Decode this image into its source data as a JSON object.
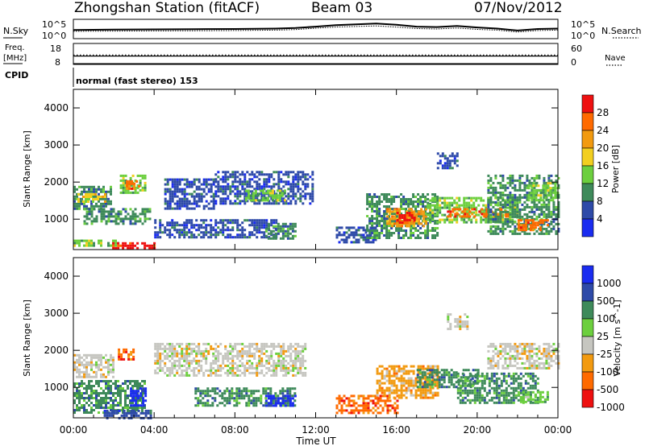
{
  "header": {
    "station": "Zhongshan Station (fitACF)",
    "beam": "Beam 03",
    "date": "07/Nov/2012"
  },
  "top_panels": {
    "nsky_label": "N.Sky",
    "nsky_ticks": [
      "10^5",
      "10^0"
    ],
    "nsearch_label": "N.Search",
    "nsearch_ticks": [
      "10^5",
      "10^0"
    ],
    "freq_label_1": "Freq.",
    "freq_label_2": "[MHz]",
    "freq_ticks": [
      "18",
      "8"
    ],
    "nave_label": "Nave",
    "nave_ticks": [
      "60",
      "0"
    ],
    "cpid_label": "CPID",
    "cpid_text": "normal (fast stereo) 153"
  },
  "colors": {
    "power": [
      "#1a2cf0",
      "#2e4aa8",
      "#3e8a5a",
      "#6ccf3e",
      "#f2cf20",
      "#f29a10",
      "#ff6a00",
      "#ee1010"
    ],
    "velocity": [
      "#1a2cf0",
      "#2e4aa8",
      "#3e8a5a",
      "#6ccf3e",
      "#c6c6c0",
      "#f29a10",
      "#ff6a00",
      "#ee1010"
    ]
  },
  "chart_data": [
    {
      "type": "heatmap",
      "panel": "power",
      "ylabel": "Slant Range [km]",
      "xlabel": "",
      "ylim": [
        180,
        4500
      ],
      "xlim": [
        "00:00",
        "24:00"
      ],
      "y_ticks": [
        "1000",
        "2000",
        "3000",
        "4000"
      ],
      "colorbar_label": "Power [dB]",
      "colorbar_ticks": [
        "4",
        "8",
        "12",
        "16",
        "20",
        "24",
        "28"
      ],
      "regions": [
        {
          "t0": 0.0,
          "t1": 2.2,
          "r0": 300,
          "r1": 450,
          "level": 3
        },
        {
          "t0": 1.8,
          "t1": 4.0,
          "r0": 200,
          "r1": 380,
          "level": 7
        },
        {
          "t0": 0.0,
          "t1": 1.8,
          "r0": 1300,
          "r1": 1900,
          "level": 2
        },
        {
          "t0": 0.2,
          "t1": 1.6,
          "r0": 1500,
          "r1": 1700,
          "level": 4
        },
        {
          "t0": 0.5,
          "t1": 3.8,
          "r0": 900,
          "r1": 1300,
          "level": 2
        },
        {
          "t0": 2.3,
          "t1": 3.6,
          "r0": 1700,
          "r1": 2200,
          "level": 3
        },
        {
          "t0": 2.6,
          "t1": 3.2,
          "r0": 1850,
          "r1": 2050,
          "level": 6
        },
        {
          "t0": 4.5,
          "t1": 7.0,
          "r0": 1300,
          "r1": 2100,
          "level": 1
        },
        {
          "t0": 7.0,
          "t1": 11.8,
          "r0": 1400,
          "r1": 2300,
          "level": 1
        },
        {
          "t0": 8.5,
          "t1": 10.5,
          "r0": 1500,
          "r1": 1800,
          "level": 3
        },
        {
          "t0": 4.0,
          "t1": 10.0,
          "r0": 500,
          "r1": 1000,
          "level": 1
        },
        {
          "t0": 9.5,
          "t1": 11.0,
          "r0": 500,
          "r1": 900,
          "level": 2
        },
        {
          "t0": 13.0,
          "t1": 15.0,
          "r0": 400,
          "r1": 800,
          "level": 1
        },
        {
          "t0": 14.5,
          "t1": 18.0,
          "r0": 500,
          "r1": 1700,
          "level": 2
        },
        {
          "t0": 15.5,
          "t1": 17.5,
          "r0": 800,
          "r1": 1300,
          "level": 5
        },
        {
          "t0": 16.0,
          "t1": 17.0,
          "r0": 900,
          "r1": 1200,
          "level": 7
        },
        {
          "t0": 17.5,
          "t1": 22.0,
          "r0": 900,
          "r1": 1600,
          "level": 3
        },
        {
          "t0": 18.5,
          "t1": 21.5,
          "r0": 1100,
          "r1": 1300,
          "level": 6
        },
        {
          "t0": 20.5,
          "t1": 24.0,
          "r0": 600,
          "r1": 2200,
          "level": 2
        },
        {
          "t0": 22.0,
          "t1": 23.5,
          "r0": 700,
          "r1": 1000,
          "level": 6
        },
        {
          "t0": 22.5,
          "t1": 24.0,
          "r0": 1500,
          "r1": 2000,
          "level": 3
        },
        {
          "t0": 18.0,
          "t1": 19.0,
          "r0": 2400,
          "r1": 2800,
          "level": 1
        }
      ]
    },
    {
      "type": "heatmap",
      "panel": "velocity",
      "ylabel": "Slant Range [km]",
      "xlabel": "Time UT",
      "ylim": [
        180,
        4500
      ],
      "xlim": [
        "00:00",
        "24:00"
      ],
      "y_ticks": [
        "1000",
        "2000",
        "3000",
        "4000"
      ],
      "x_ticks": [
        "00:00",
        "04:00",
        "08:00",
        "12:00",
        "16:00",
        "20:00",
        "00:00"
      ],
      "colorbar_label": "Velocity [m s^-1]",
      "colorbar_ticks": [
        "1000",
        "500",
        "100",
        "25",
        "-25",
        "-100",
        "-500",
        "-1000"
      ],
      "regions": [
        {
          "t0": 0.0,
          "t1": 2.0,
          "r0": 1300,
          "r1": 1900,
          "level": 4
        },
        {
          "t0": 0.0,
          "t1": 3.5,
          "r0": 300,
          "r1": 1200,
          "level": 2
        },
        {
          "t0": 1.5,
          "t1": 3.8,
          "r0": 200,
          "r1": 400,
          "level": 1
        },
        {
          "t0": 2.2,
          "t1": 3.0,
          "r0": 1750,
          "r1": 2050,
          "level": 6
        },
        {
          "t0": 2.8,
          "t1": 3.6,
          "r0": 500,
          "r1": 1000,
          "level": 0
        },
        {
          "t0": 4.0,
          "t1": 11.5,
          "r0": 1300,
          "r1": 2200,
          "level": 4
        },
        {
          "t0": 6.0,
          "t1": 11.0,
          "r0": 500,
          "r1": 1000,
          "level": 2
        },
        {
          "t0": 9.5,
          "t1": 11.0,
          "r0": 500,
          "r1": 800,
          "level": 0
        },
        {
          "t0": 13.0,
          "t1": 16.0,
          "r0": 300,
          "r1": 800,
          "level": 6
        },
        {
          "t0": 15.0,
          "t1": 18.0,
          "r0": 700,
          "r1": 1600,
          "level": 5
        },
        {
          "t0": 17.0,
          "t1": 20.0,
          "r0": 1000,
          "r1": 1500,
          "level": 2
        },
        {
          "t0": 19.0,
          "t1": 23.0,
          "r0": 600,
          "r1": 1400,
          "level": 2
        },
        {
          "t0": 20.5,
          "t1": 24.0,
          "r0": 1500,
          "r1": 2200,
          "level": 4
        },
        {
          "t0": 18.5,
          "t1": 19.5,
          "r0": 2600,
          "r1": 3000,
          "level": 4
        },
        {
          "t0": 22.0,
          "t1": 23.5,
          "r0": 600,
          "r1": 900,
          "level": 3
        }
      ]
    },
    {
      "type": "line",
      "panel": "nsky_nsearch",
      "x": [
        0,
        2,
        4,
        6,
        8,
        10,
        11,
        12,
        13,
        14,
        15,
        16,
        17,
        18,
        19,
        20,
        21,
        22,
        23,
        24
      ],
      "series": [
        {
          "name": "N.Sky",
          "values": [
            0.45,
            0.47,
            0.48,
            0.49,
            0.5,
            0.52,
            0.55,
            0.62,
            0.7,
            0.74,
            0.78,
            0.72,
            0.62,
            0.6,
            0.66,
            0.58,
            0.52,
            0.42,
            0.5,
            0.52
          ]
        },
        {
          "name": "N.Search",
          "values": [
            0.38,
            0.39,
            0.4,
            0.41,
            0.42,
            0.44,
            0.47,
            0.54,
            0.6,
            0.63,
            0.66,
            0.6,
            0.52,
            0.5,
            0.55,
            0.48,
            0.44,
            0.34,
            0.42,
            0.44
          ]
        }
      ]
    },
    {
      "type": "line",
      "panel": "freq_nave",
      "x": [
        0,
        24
      ],
      "series": [
        {
          "name": "Freq.",
          "values": [
            12,
            12
          ]
        },
        {
          "name": "Nave",
          "values": [
            27,
            27
          ]
        }
      ]
    }
  ]
}
